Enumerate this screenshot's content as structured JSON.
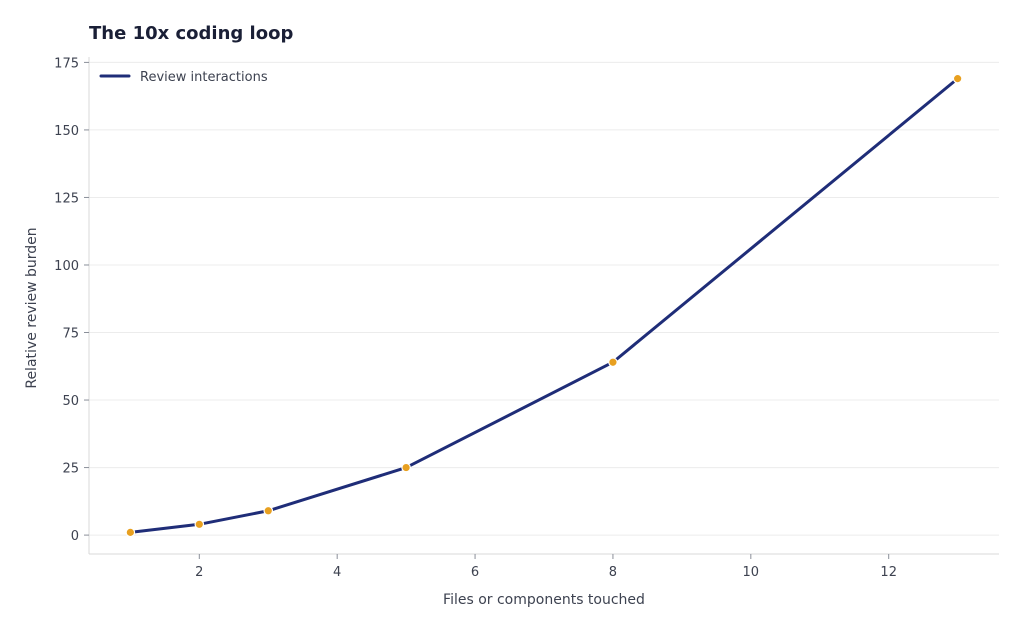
{
  "chart_data": {
    "type": "line",
    "title": "The 10x coding loop",
    "xlabel": "Files or components touched",
    "ylabel": "Relative review burden",
    "x": [
      1,
      2,
      3,
      5,
      8,
      13
    ],
    "series": [
      {
        "name": "Review interactions",
        "values": [
          1,
          4,
          9,
          25,
          64,
          169
        ]
      }
    ],
    "xlim": [
      0.4,
      13.6
    ],
    "ylim": [
      -7,
      177
    ],
    "xticks": [
      2,
      4,
      6,
      8,
      10,
      12
    ],
    "yticks": [
      0,
      25,
      50,
      75,
      100,
      125,
      150,
      175
    ],
    "grid": "horizontal",
    "legend_position": "top-left",
    "colors": {
      "line": "#1f2d78",
      "marker": "#e8a020",
      "marker_edge": "#ffffff",
      "grid": "#ececec",
      "spine": "#d9d9d9"
    }
  }
}
